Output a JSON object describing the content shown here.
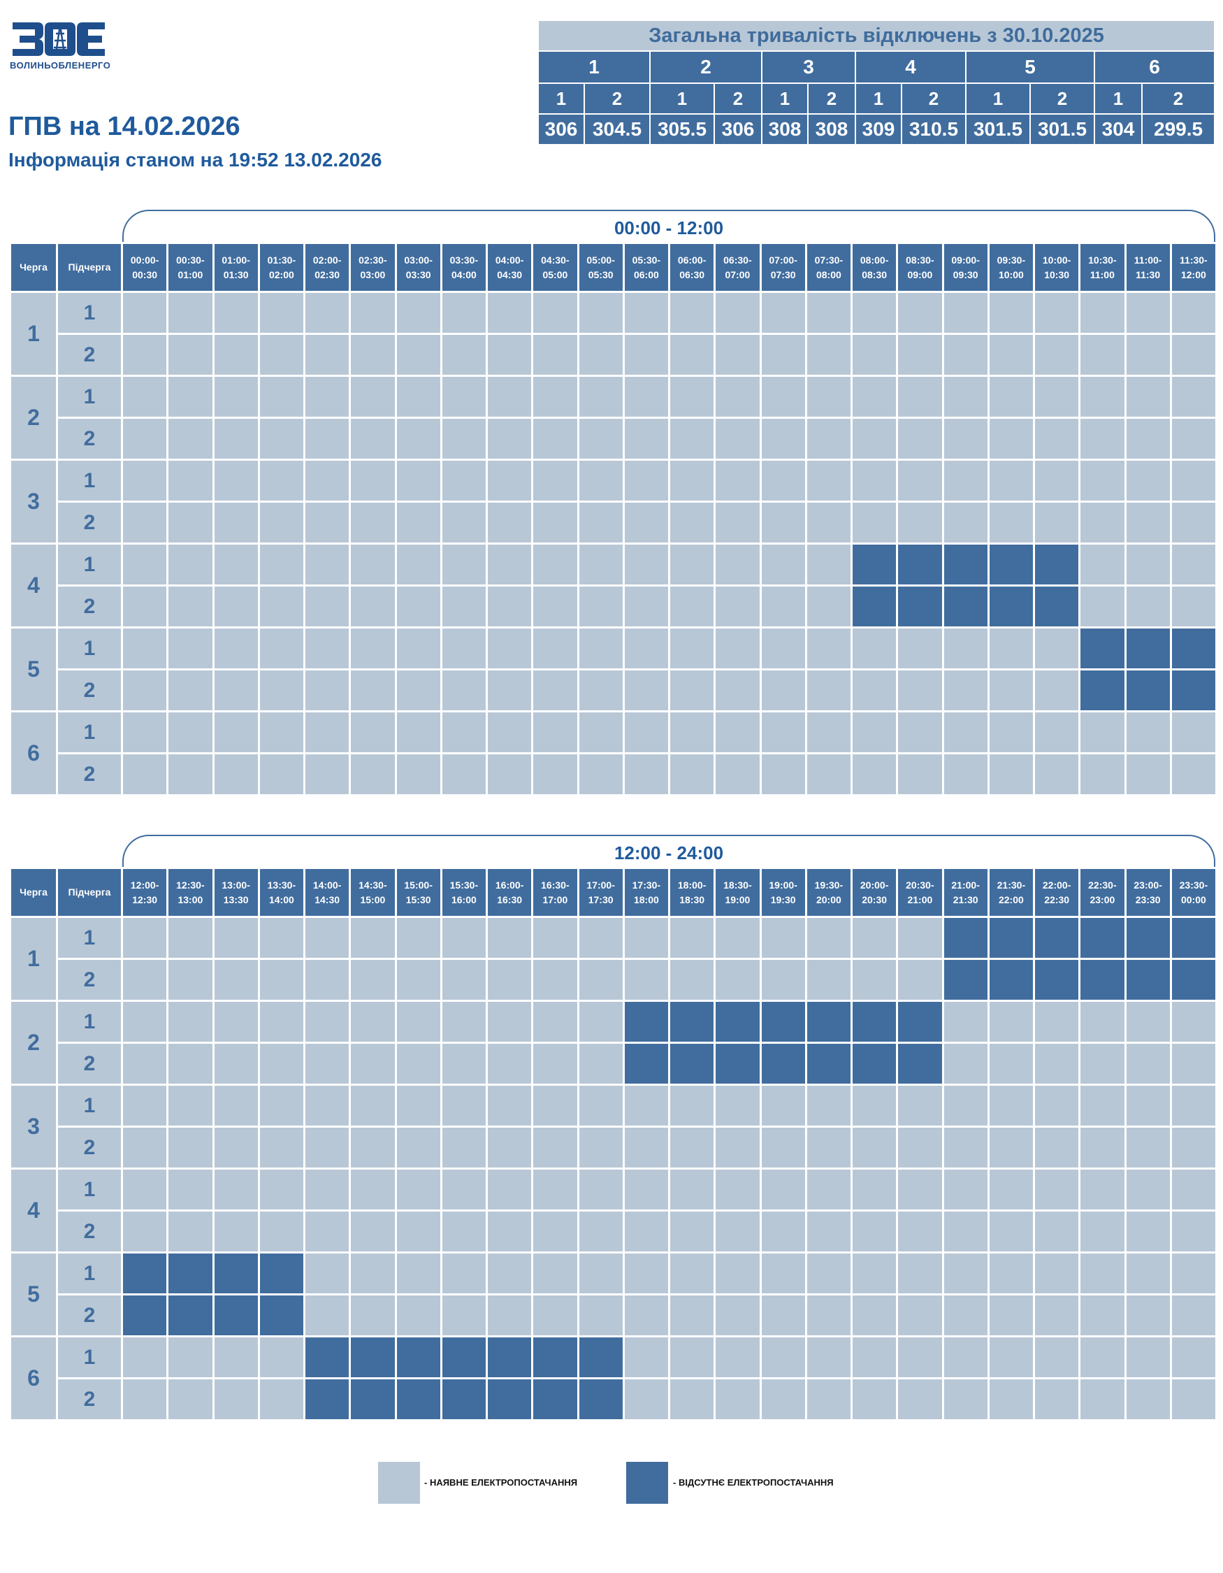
{
  "logo": {
    "caption": "ВОЛИНЬОБЛЕНЕРГО"
  },
  "header": {
    "title": "ГПВ на 14.02.2026",
    "subtitle": "Інформація станом на 19:52 13.02.2026"
  },
  "summary": {
    "title": "Загальна тривалість відключень з 30.10.2025",
    "queues": [
      "1",
      "2",
      "3",
      "4",
      "5",
      "6"
    ],
    "subqueues": [
      "1",
      "2",
      "1",
      "2",
      "1",
      "2",
      "1",
      "2",
      "1",
      "2",
      "1",
      "2"
    ],
    "values": [
      "306",
      "304.5",
      "305.5",
      "306",
      "308",
      "308",
      "309",
      "310.5",
      "301.5",
      "301.5",
      "304",
      "299.5"
    ]
  },
  "grid_headers": {
    "queue": "Черга",
    "subqueue": "Підчерга"
  },
  "row_labels": {
    "queues": [
      "1",
      "2",
      "3",
      "4",
      "5",
      "6"
    ],
    "subqueues": [
      "1",
      "2"
    ]
  },
  "blocks": [
    {
      "title": "00:00 - 12:00",
      "slots": [
        "00:00-00:30",
        "00:30-01:00",
        "01:00-01:30",
        "01:30-02:00",
        "02:00-02:30",
        "02:30-03:00",
        "03:00-03:30",
        "03:30-04:00",
        "04:00-04:30",
        "04:30-05:00",
        "05:00-05:30",
        "05:30-06:00",
        "06:00-06:30",
        "06:30-07:00",
        "07:00-07:30",
        "07:30-08:00",
        "08:00-08:30",
        "08:30-09:00",
        "09:00-09:30",
        "09:30-10:00",
        "10:00-10:30",
        "10:30-11:00",
        "11:00-11:30",
        "11:30-12:00"
      ],
      "outages": {
        "1.1": [],
        "1.2": [],
        "2.1": [],
        "2.2": [],
        "3.1": [],
        "3.2": [],
        "4.1": [
          16,
          17,
          18,
          19,
          20
        ],
        "4.2": [
          16,
          17,
          18,
          19,
          20
        ],
        "5.1": [
          21,
          22,
          23
        ],
        "5.2": [
          21,
          22,
          23
        ],
        "6.1": [],
        "6.2": []
      }
    },
    {
      "title": "12:00 - 24:00",
      "slots": [
        "12:00-12:30",
        "12:30-13:00",
        "13:00-13:30",
        "13:30-14:00",
        "14:00-14:30",
        "14:30-15:00",
        "15:00-15:30",
        "15:30-16:00",
        "16:00-16:30",
        "16:30-17:00",
        "17:00-17:30",
        "17:30-18:00",
        "18:00-18:30",
        "18:30-19:00",
        "19:00-19:30",
        "19:30-20:00",
        "20:00-20:30",
        "20:30-21:00",
        "21:00-21:30",
        "21:30-22:00",
        "22:00-22:30",
        "22:30-23:00",
        "23:00-23:30",
        "23:30-00:00"
      ],
      "outages": {
        "1.1": [
          18,
          19,
          20,
          21,
          22,
          23
        ],
        "1.2": [
          18,
          19,
          20,
          21,
          22,
          23
        ],
        "2.1": [
          11,
          12,
          13,
          14,
          15,
          16,
          17
        ],
        "2.2": [
          11,
          12,
          13,
          14,
          15,
          16,
          17
        ],
        "3.1": [],
        "3.2": [],
        "4.1": [],
        "4.2": [],
        "5.1": [
          0,
          1,
          2,
          3
        ],
        "5.2": [
          0,
          1,
          2,
          3
        ],
        "6.1": [
          4,
          5,
          6,
          7,
          8,
          9,
          10
        ],
        "6.2": [
          4,
          5,
          6,
          7,
          8,
          9,
          10
        ]
      }
    }
  ],
  "legend": {
    "available": "- НАЯВНЕ ЕЛЕКТРОПОСТАЧАННЯ",
    "unavailable": "- ВІДСУТНЄ ЕЛЕКТРОПОСТАЧАННЯ"
  },
  "colors": {
    "available": "#b8c7d6",
    "unavailable": "#416d9e",
    "accent": "#1f5a9c"
  }
}
